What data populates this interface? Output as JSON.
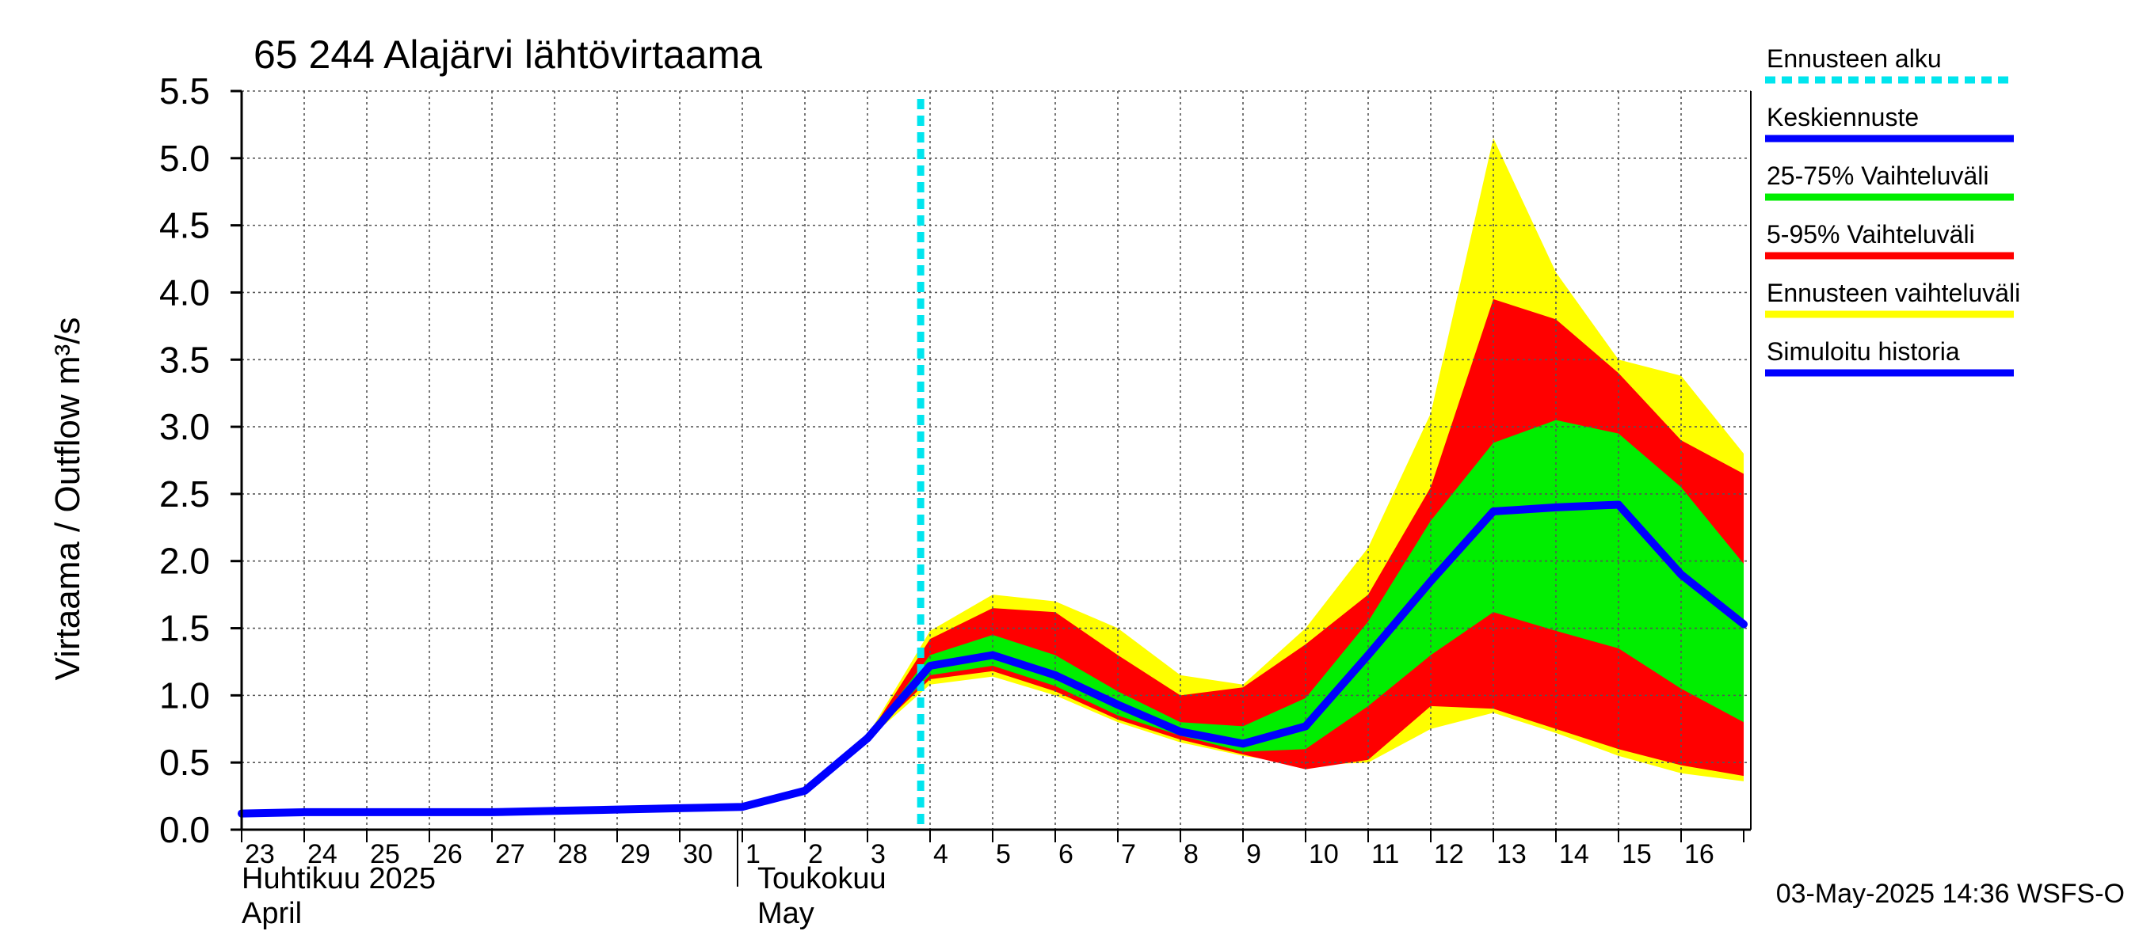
{
  "chart_data": {
    "type": "area",
    "title": "65 244 Alajärvi lähtövirtaama",
    "ylabel": "Virtaama / Outflow    m³/s",
    "ylim": [
      0,
      5.5
    ],
    "yticks": [
      "0.0",
      "0.5",
      "1.0",
      "1.5",
      "2.0",
      "2.5",
      "3.0",
      "3.5",
      "4.0",
      "4.5",
      "5.0",
      "5.5"
    ],
    "x_tick_labels": [
      "23",
      "24",
      "25",
      "26",
      "27",
      "28",
      "29",
      "30",
      "1",
      "2",
      "3",
      "4",
      "5",
      "6",
      "7",
      "8",
      "9",
      "10",
      "11",
      "12",
      "13",
      "14",
      "15",
      "16"
    ],
    "month_labels": [
      {
        "line1": "Huhtikuu  2025",
        "line2": "April"
      },
      {
        "line1": "Toukokuu",
        "line2": "May"
      }
    ],
    "forecast_start_day": 10.85,
    "legend": [
      {
        "label": "Ennusteen alku",
        "color": "#00e5ee",
        "style": "dashed"
      },
      {
        "label": "Keskiennuste",
        "color": "#0000ff",
        "style": "solid"
      },
      {
        "label": "25-75% Vaihteluväli",
        "color": "#00ee00",
        "style": "solid"
      },
      {
        "label": "5-95% Vaihteluväli",
        "color": "#ff0000",
        "style": "solid"
      },
      {
        "label": "Ennusteen vaihteluväli",
        "color": "#ffff00",
        "style": "solid"
      },
      {
        "label": "Simuloitu historia",
        "color": "#0000ff",
        "style": "solid"
      }
    ],
    "x": [
      0,
      1,
      2,
      3,
      4,
      5,
      6,
      7,
      8,
      9,
      10,
      11,
      12,
      13,
      14,
      15,
      16,
      17,
      18,
      19,
      20,
      21,
      22,
      23,
      24
    ],
    "series": [
      {
        "name": "Ennusteen vaihteluväli",
        "lower": [
          null,
          null,
          null,
          null,
          null,
          null,
          null,
          null,
          null,
          null,
          0.67,
          1.08,
          1.14,
          1.0,
          0.8,
          0.65,
          0.55,
          0.48,
          0.5,
          0.75,
          0.87,
          0.72,
          0.55,
          0.42,
          0.36
        ],
        "upper": [
          null,
          null,
          null,
          null,
          null,
          null,
          null,
          null,
          null,
          null,
          0.7,
          1.48,
          1.75,
          1.7,
          1.5,
          1.15,
          1.08,
          1.5,
          2.1,
          3.1,
          5.15,
          4.15,
          3.5,
          3.38,
          2.8
        ]
      },
      {
        "name": "5-95% Vaihteluväli",
        "lower": [
          null,
          null,
          null,
          null,
          null,
          null,
          null,
          null,
          null,
          null,
          0.68,
          1.12,
          1.18,
          1.03,
          0.82,
          0.67,
          0.56,
          0.45,
          0.52,
          0.92,
          0.9,
          0.75,
          0.6,
          0.48,
          0.4
        ],
        "upper": [
          null,
          null,
          null,
          null,
          null,
          null,
          null,
          null,
          null,
          null,
          0.69,
          1.42,
          1.65,
          1.62,
          1.3,
          1.0,
          1.06,
          1.38,
          1.75,
          2.55,
          3.95,
          3.8,
          3.4,
          2.9,
          2.65
        ]
      },
      {
        "name": "25-75% Vaihteluväli",
        "lower": [
          null,
          null,
          null,
          null,
          null,
          null,
          null,
          null,
          null,
          null,
          0.68,
          1.15,
          1.22,
          1.07,
          0.85,
          0.7,
          0.58,
          0.6,
          0.92,
          1.3,
          1.62,
          1.48,
          1.35,
          1.05,
          0.8
        ],
        "upper": [
          null,
          null,
          null,
          null,
          null,
          null,
          null,
          null,
          null,
          null,
          0.69,
          1.3,
          1.45,
          1.3,
          1.03,
          0.8,
          0.77,
          0.98,
          1.55,
          2.3,
          2.88,
          3.05,
          2.95,
          2.55,
          1.98
        ]
      },
      {
        "name": "Keskiennuste",
        "values": [
          null,
          null,
          null,
          null,
          null,
          null,
          null,
          null,
          null,
          null,
          0.68,
          1.22,
          1.3,
          1.15,
          0.93,
          0.73,
          0.64,
          0.77,
          1.3,
          1.85,
          2.37,
          2.4,
          2.42,
          1.9,
          1.53
        ]
      },
      {
        "name": "Simuloitu historia",
        "values": [
          0.12,
          0.13,
          0.13,
          0.13,
          0.13,
          0.14,
          0.15,
          0.16,
          0.17,
          0.29,
          0.68,
          null,
          null,
          null,
          null,
          null,
          null,
          null,
          null,
          null,
          null,
          null,
          null,
          null,
          null
        ]
      }
    ],
    "footer": "03-May-2025 14:36 WSFS-O"
  }
}
